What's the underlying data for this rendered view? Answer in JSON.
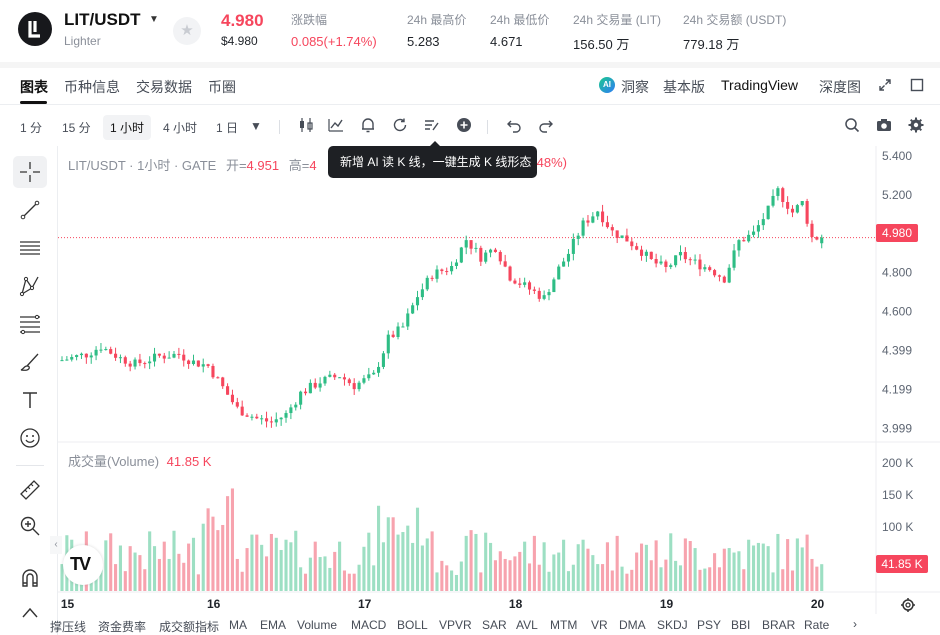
{
  "header": {
    "pair": "LIT/USDT",
    "venue": "Lighter",
    "price": "4.980",
    "price_usd": "$4.980",
    "stats": [
      {
        "label": "涨跌幅",
        "value": "0.085(+1.74%)",
        "red": true
      },
      {
        "label": "24h 最高价",
        "value": "5.283",
        "red": false
      },
      {
        "label": "24h 最低价",
        "value": "4.671",
        "red": false
      },
      {
        "label": "24h 交易量 (LIT)",
        "value": "156.50 万",
        "red": false
      },
      {
        "label": "24h 交易额 (USDT)",
        "value": "779.18 万",
        "red": false
      }
    ]
  },
  "tabs": {
    "items": [
      "图表",
      "币种信息",
      "交易数据",
      "币圈"
    ],
    "active": "图表",
    "right": {
      "insight": "洞察",
      "basic": "基本版",
      "tradingview": "TradingView",
      "depth": "深度图"
    }
  },
  "toolbar": {
    "timeframes": [
      "1 分",
      "15 分",
      "1 小时",
      "4 小时",
      "1 日"
    ],
    "selected": "1 小时",
    "icons": [
      "candle-type-icon",
      "indicators-icon",
      "alert-icon",
      "replay-icon",
      "pattern-icon",
      "add-indicator-icon",
      "undo-icon",
      "redo-icon",
      "search-icon",
      "camera-icon",
      "settings-icon"
    ]
  },
  "left_tools": [
    "crosshair-icon",
    "trend-line-icon",
    "horizontal-lines-icon",
    "pattern-tool-icon",
    "fib-icon",
    "brush-icon",
    "text-tool-icon",
    "emoji-icon",
    "ruler-icon",
    "zoom-in-icon",
    "magnet-icon"
  ],
  "legend": {
    "title": "LIT/USDT · 1小时 · GATE",
    "open_label": "开=",
    "open_value": "4.951",
    "high_label": "高=",
    "high_value_partial": "4",
    "change_partial": ".48%)"
  },
  "tooltip": "新增 AI 读 K 线，一键生成 K 线形态",
  "volume": {
    "label": "成交量(Volume)",
    "value": "41.85 K"
  },
  "price_tag": "4.980",
  "vol_tag": "41.85 K",
  "indicators": [
    "撑压线",
    "资金费率",
    "成交额指标",
    "MA",
    "EMA",
    "Volume",
    "MACD",
    "BOLL",
    "VPVR",
    "SAR",
    "AVL",
    "MTM",
    "VR",
    "DMA",
    "SKDJ",
    "PSY",
    "BBI",
    "BRAR",
    "Rate"
  ],
  "colors": {
    "up": "#2ebd85",
    "down": "#f6465d",
    "up_vol": "#9ddfc3",
    "down_vol": "#f7a3ae"
  },
  "chart_data": {
    "type": "candlestick",
    "title": "LIT/USDT · 1小时 · GATE",
    "price_axis_ticks": [
      5.4,
      5.2,
      4.98,
      4.8,
      4.6,
      4.399,
      4.199,
      3.999
    ],
    "price_axis_labels": [
      "5.400",
      "5.200",
      "4.800",
      "4.600",
      "4.399",
      "4.199",
      "3.999"
    ],
    "current_price": 4.98,
    "ylim": [
      3.96,
      5.42
    ],
    "volume_axis_labels": [
      "200 K",
      "150 K",
      "100 K"
    ],
    "volume_ylim": [
      0,
      220
    ],
    "x_labels": [
      {
        "i": 1,
        "label": "15"
      },
      {
        "i": 31,
        "label": "16"
      },
      {
        "i": 62,
        "label": "17"
      },
      {
        "i": 93,
        "label": "18"
      },
      {
        "i": 124,
        "label": "19"
      },
      {
        "i": 155,
        "label": "20"
      }
    ],
    "candles": []
  }
}
